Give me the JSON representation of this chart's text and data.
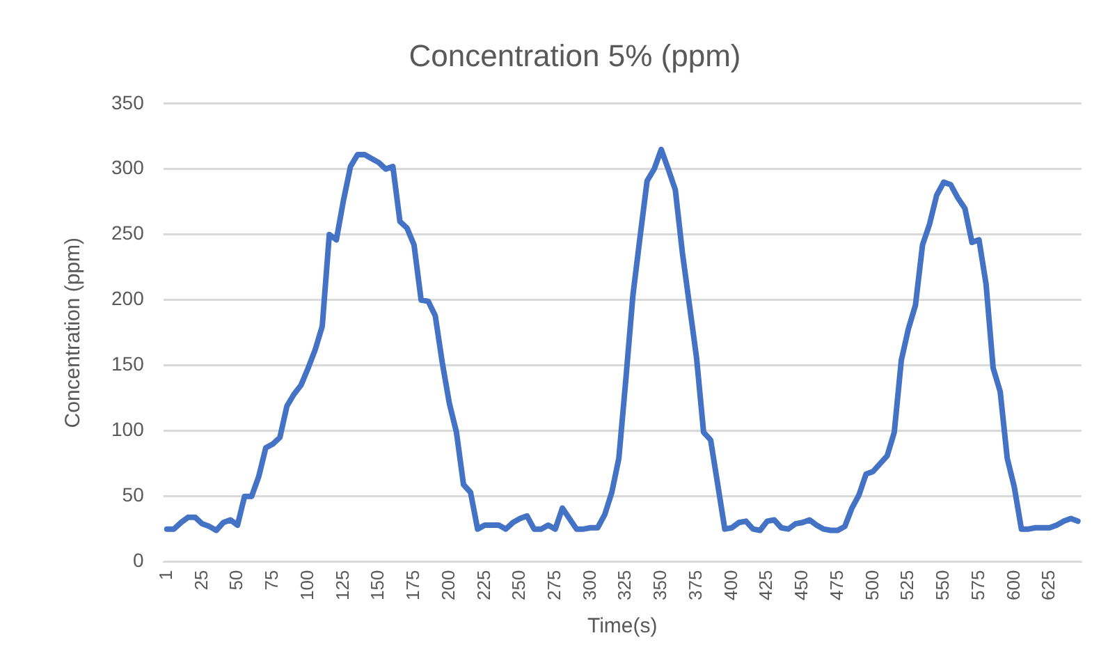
{
  "chart_data": {
    "type": "line",
    "title": "Concentration 5% (ppm)",
    "xlabel": "Time(s)",
    "ylabel": "Concentration (ppm)",
    "categories": [
      "1",
      null,
      null,
      null,
      null,
      "25",
      null,
      null,
      null,
      null,
      "50",
      null,
      null,
      null,
      null,
      "75",
      null,
      null,
      null,
      null,
      "100",
      null,
      null,
      null,
      null,
      "125",
      null,
      null,
      null,
      null,
      "150",
      null,
      null,
      null,
      null,
      "175",
      null,
      null,
      null,
      null,
      "200",
      null,
      null,
      null,
      null,
      "225",
      null,
      null,
      null,
      null,
      "250",
      null,
      null,
      null,
      null,
      "275",
      null,
      null,
      null,
      null,
      "300",
      null,
      null,
      null,
      null,
      "325",
      null,
      null,
      null,
      null,
      "350",
      null,
      null,
      null,
      null,
      "375",
      null,
      null,
      null,
      null,
      "400",
      null,
      null,
      null,
      null,
      "425",
      null,
      null,
      null,
      null,
      "450",
      null,
      null,
      null,
      null,
      "475",
      null,
      null,
      null,
      null,
      "500",
      null,
      null,
      null,
      null,
      "525",
      null,
      null,
      null,
      null,
      "550",
      null,
      null,
      null,
      null,
      "575",
      null,
      null,
      null,
      null,
      "600",
      null,
      null,
      null,
      null,
      "625",
      null,
      null,
      null,
      null
    ],
    "series": [
      {
        "color": "#4472c4",
        "values": [
          25,
          25,
          30,
          34,
          34,
          29,
          27,
          24,
          30,
          32,
          28,
          50,
          50,
          65,
          87,
          90,
          95,
          119,
          128,
          135,
          148,
          162,
          180,
          250,
          246,
          276,
          302,
          311,
          311,
          308,
          305,
          300,
          302,
          260,
          255,
          242,
          200,
          199,
          188,
          152,
          121,
          99,
          59,
          53,
          25,
          28,
          28,
          28,
          25,
          30,
          33,
          35,
          25,
          25,
          28,
          25,
          41,
          33,
          25,
          25,
          26,
          26,
          36,
          53,
          79,
          140,
          204,
          248,
          291,
          300,
          315,
          300,
          284,
          236,
          196,
          156,
          99,
          93,
          59,
          25,
          26,
          30,
          31,
          25,
          24,
          31,
          32,
          26,
          25,
          29,
          30,
          32,
          28,
          25,
          24,
          24,
          27,
          41,
          51,
          67,
          69,
          75,
          81,
          99,
          154,
          178,
          196,
          242,
          258,
          280,
          290,
          288,
          278,
          270,
          244,
          246,
          212,
          148,
          130,
          79,
          57,
          25,
          25,
          26,
          26,
          26,
          28,
          31,
          33,
          31
        ]
      }
    ],
    "ylim": [
      0,
      350
    ],
    "yticks": [
      0,
      50,
      100,
      150,
      200,
      250,
      300,
      350
    ],
    "grid": "y",
    "marker": "none",
    "line_style": "solid"
  }
}
